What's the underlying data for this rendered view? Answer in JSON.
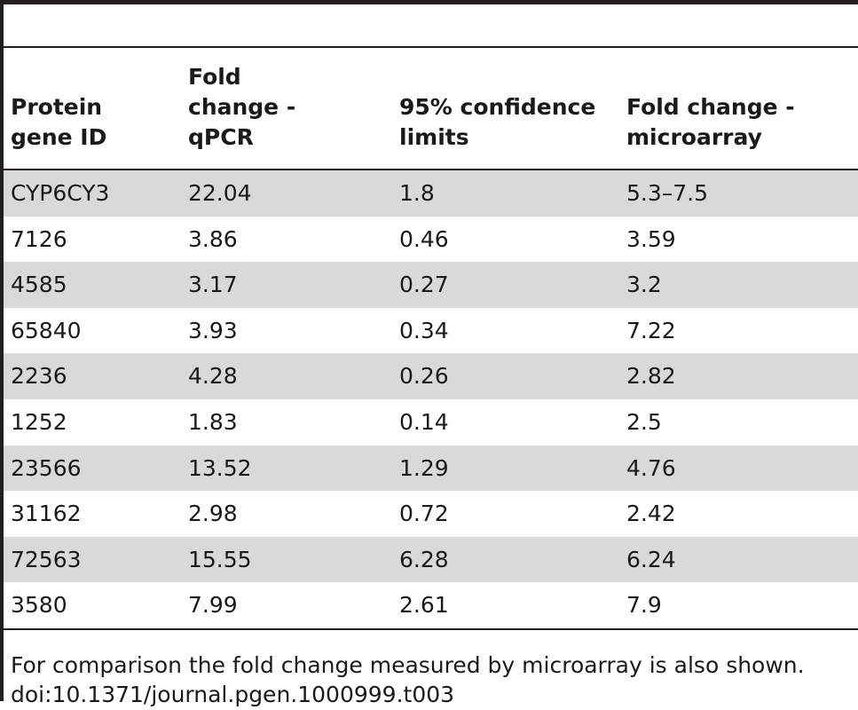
{
  "table": {
    "headers": [
      "Protein\ngene ID",
      "Fold\nchange -\nqPCR",
      "95% confidence\nlimits",
      "Fold change -\nmicroarray"
    ],
    "rows": [
      [
        "CYP6CY3",
        "22.04",
        "1.8",
        "5.3–7.5"
      ],
      [
        "7126",
        "3.86",
        "0.46",
        "3.59"
      ],
      [
        "4585",
        "3.17",
        "0.27",
        "3.2"
      ],
      [
        "65840",
        "3.93",
        "0.34",
        "7.22"
      ],
      [
        "2236",
        "4.28",
        "0.26",
        "2.82"
      ],
      [
        "1252",
        "1.83",
        "0.14",
        "2.5"
      ],
      [
        "23566",
        "13.52",
        "1.29",
        "4.76"
      ],
      [
        "31162",
        "2.98",
        "0.72",
        "2.42"
      ],
      [
        "72563",
        "15.55",
        "6.28",
        "6.24"
      ],
      [
        "3580",
        "7.99",
        "2.61",
        "7.9"
      ]
    ]
  },
  "footnote": {
    "note": "For comparison the fold change measured by microarray is also shown.",
    "doi": "doi:10.1371/journal.pgen.1000999.t003"
  },
  "colors": {
    "rule": "#231f20",
    "shaded_row": "#d9d9d9",
    "text": "#1a1a1a"
  }
}
